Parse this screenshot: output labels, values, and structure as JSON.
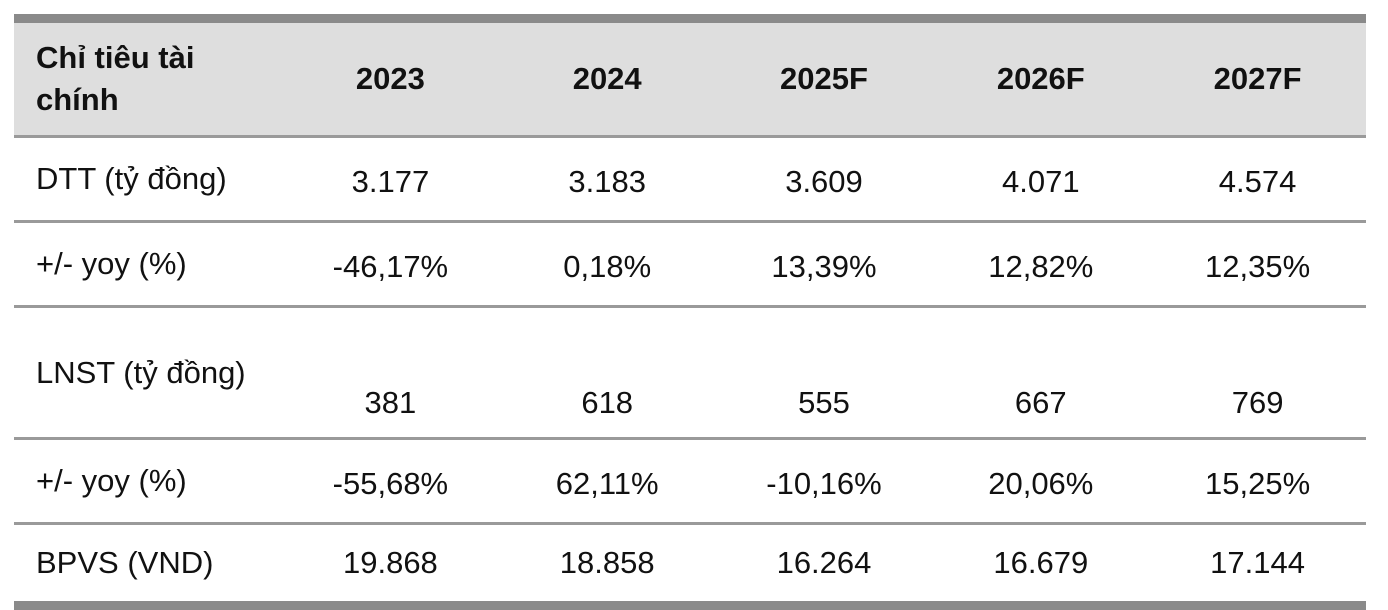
{
  "table": {
    "header": {
      "label": "Chỉ tiêu tài chính",
      "years": [
        "2023",
        "2024",
        "2025F",
        "2026F",
        "2027F"
      ]
    },
    "rows": [
      {
        "label": "DTT (tỷ đồng)",
        "values": [
          "3.177",
          "3.183",
          "3.609",
          "4.071",
          "4.574"
        ]
      },
      {
        "label": "+/- yoy (%)",
        "values": [
          "-46,17%",
          "0,18%",
          "13,39%",
          "12,82%",
          "12,35%"
        ]
      },
      {
        "label": "LNST (tỷ đồng)",
        "values": [
          "381",
          "618",
          "555",
          "667",
          "769"
        ]
      },
      {
        "label": "+/- yoy (%)",
        "values": [
          "-55,68%",
          "62,11%",
          "-10,16%",
          "20,06%",
          "15,25%"
        ]
      },
      {
        "label": "BPVS (VND)",
        "values": [
          "19.868",
          "18.858",
          "16.264",
          "16.679",
          "17.144"
        ]
      }
    ]
  }
}
